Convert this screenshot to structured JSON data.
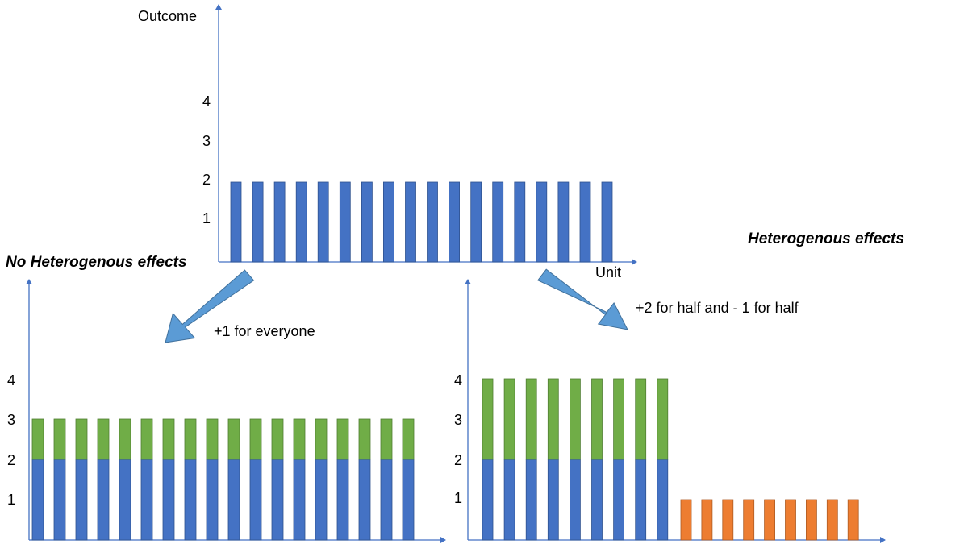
{
  "colors": {
    "axis": "#4472C4",
    "base": "#4472C4",
    "increase": "#70AD47",
    "decrease": "#ED7D31",
    "arrow": "#5B9BD5",
    "bar_edge": "#2F528F",
    "increase_edge": "#507E32",
    "decrease_edge": "#AE5A21"
  },
  "top": {
    "y_axis_label": "Outcome",
    "x_axis_label": "Unit",
    "ticks": [
      "1",
      "2",
      "3",
      "4"
    ]
  },
  "left": {
    "title": "No Heterogenous effects",
    "ticks": [
      "1",
      "2",
      "3",
      "4"
    ],
    "arrow_label": "+1 for everyone"
  },
  "right": {
    "title": "Heterogenous effects",
    "ticks": [
      "1",
      "2",
      "3",
      "4"
    ],
    "arrow_label": "+2 for half and - 1 for half"
  },
  "chart_data": [
    {
      "type": "bar",
      "name": "baseline",
      "ylabel": "Outcome",
      "xlabel": "Unit",
      "units": 18,
      "series": [
        {
          "role": "base",
          "values": [
            2,
            2,
            2,
            2,
            2,
            2,
            2,
            2,
            2,
            2,
            2,
            2,
            2,
            2,
            2,
            2,
            2,
            2
          ]
        }
      ]
    },
    {
      "type": "bar",
      "name": "homogeneous",
      "units": 18,
      "series": [
        {
          "role": "base",
          "values": [
            2,
            2,
            2,
            2,
            2,
            2,
            2,
            2,
            2,
            2,
            2,
            2,
            2,
            2,
            2,
            2,
            2,
            2
          ]
        },
        {
          "role": "increase",
          "values": [
            1,
            1,
            1,
            1,
            1,
            1,
            1,
            1,
            1,
            1,
            1,
            1,
            1,
            1,
            1,
            1,
            1,
            1
          ]
        }
      ]
    },
    {
      "type": "bar",
      "name": "heterogeneous",
      "units": 18,
      "series": [
        {
          "role": "base",
          "values": [
            2,
            2,
            2,
            2,
            2,
            2,
            2,
            2,
            2,
            0,
            0,
            0,
            0,
            0,
            0,
            0,
            0,
            0
          ]
        },
        {
          "role": "increase",
          "values": [
            2,
            2,
            2,
            2,
            2,
            2,
            2,
            2,
            2,
            0,
            0,
            0,
            0,
            0,
            0,
            0,
            0,
            0
          ]
        },
        {
          "role": "decrease",
          "values": [
            0,
            0,
            0,
            0,
            0,
            0,
            0,
            0,
            0,
            1,
            1,
            1,
            1,
            1,
            1,
            1,
            1,
            1
          ]
        }
      ]
    }
  ]
}
